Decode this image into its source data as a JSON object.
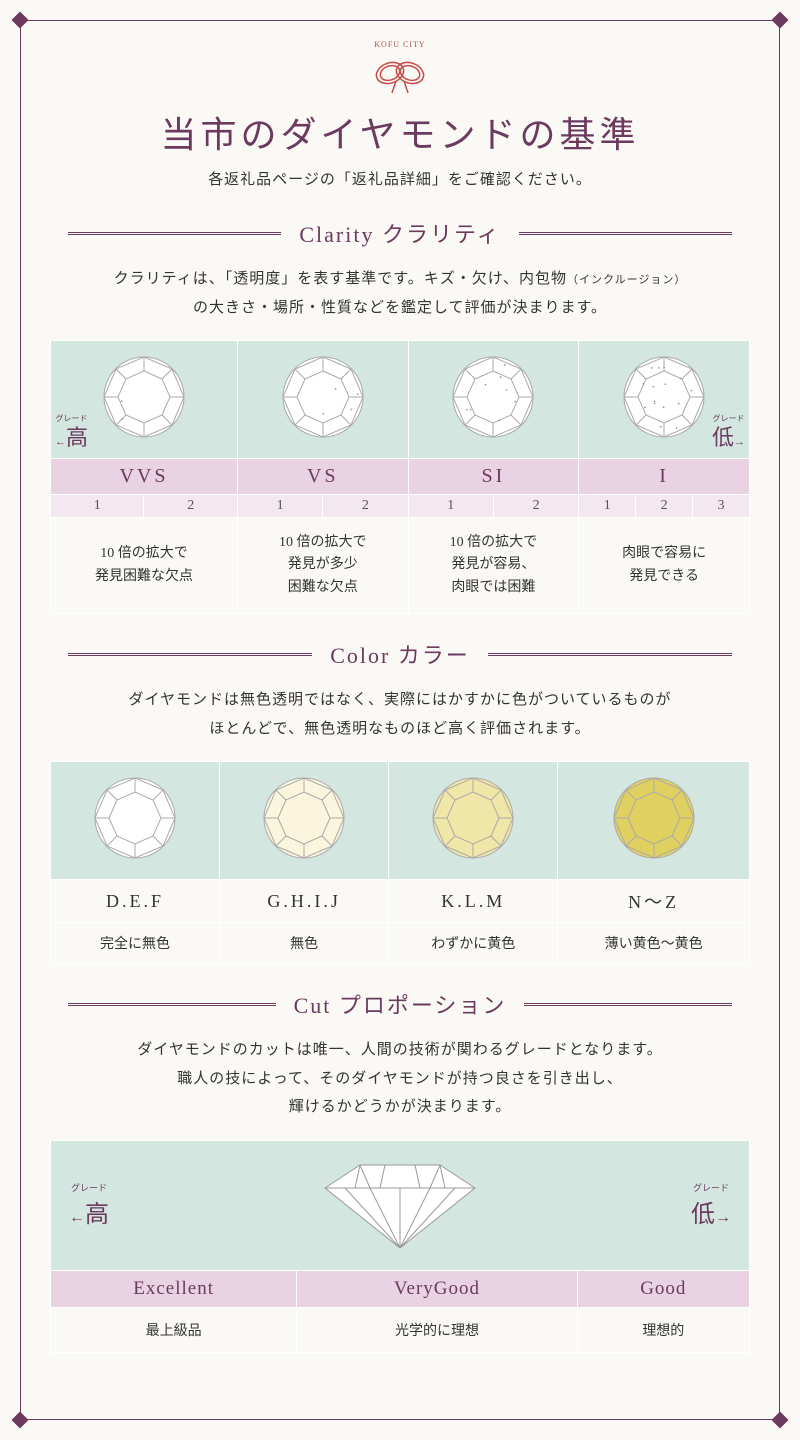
{
  "logo_text": "KOFU CITY",
  "knot_color": "#c94848",
  "main_title_parts": [
    "当市",
    "の",
    "ダイヤモンド",
    "の",
    "基準"
  ],
  "subtitle": "各返礼品ページの「返礼品詳細」をご確認ください。",
  "accent_color": "#6b3a5e",
  "bg_teal": "#d4e6e0",
  "bg_pink": "#e9d2e2",
  "bg_pink_light": "#f4e8f0",
  "bg_cream": "#fbf9f5",
  "clarity": {
    "title": "Clarity クラリティ",
    "desc_l1": "クラリティは、「透明度」を表す基準です。キズ・欠け、内包物",
    "desc_note": "（インクルージョン）",
    "desc_l2": "の大きさ・場所・性質などを鑑定して評価が決まります。",
    "high_label": "高",
    "low_label": "低",
    "grade_tiny": "グレード",
    "grades": [
      {
        "name": "VVS",
        "subs": [
          "1",
          "2"
        ],
        "desc": "10 倍の拡大で\n発見困難な欠点",
        "inclusions": 2
      },
      {
        "name": "VS",
        "subs": [
          "1",
          "2"
        ],
        "desc": "10 倍の拡大で\n発見が多少\n困難な欠点",
        "inclusions": 4
      },
      {
        "name": "SI",
        "subs": [
          "1",
          "2"
        ],
        "desc": "10 倍の拡大で\n発見が容易、\n肉眼では困難",
        "inclusions": 8
      },
      {
        "name": "I",
        "subs": [
          "1",
          "2",
          "3"
        ],
        "desc": "肉眼で容易に\n発見できる",
        "inclusions": 15
      }
    ]
  },
  "color": {
    "title": "Color カラー",
    "desc_l1": "ダイヤモンドは無色透明ではなく、実際にはかすかに色がついているものが",
    "desc_l2": "ほとんどで、無色透明なものほど高く評価されます。",
    "grades": [
      {
        "range": "D.E.F",
        "desc": "完全に無色",
        "fill": "#ffffff"
      },
      {
        "range": "G.H.I.J",
        "desc": "無色",
        "fill": "#faf5dc"
      },
      {
        "range": "K.L.M",
        "desc": "わずかに黄色",
        "fill": "#f0e6a8"
      },
      {
        "range": "N～Z",
        "desc": "薄い黄色～黄色",
        "fill": "#e0d060"
      }
    ]
  },
  "cut": {
    "title": "Cut プロポーション",
    "desc_l1": "ダイヤモンドのカットは唯一、人間の技術が関わるグレードとなります。",
    "desc_l2": "職人の技によって、そのダイヤモンドが持つ良さを引き出し、",
    "desc_l3": "輝けるかどうかが決まります。",
    "high_label": "高",
    "low_label": "低",
    "grade_tiny": "グレード",
    "grades": [
      {
        "name": "Excellent",
        "desc": "最上級品"
      },
      {
        "name": "VeryGood",
        "desc": "光学的に理想"
      },
      {
        "name": "Good",
        "desc": "理想的"
      }
    ]
  }
}
